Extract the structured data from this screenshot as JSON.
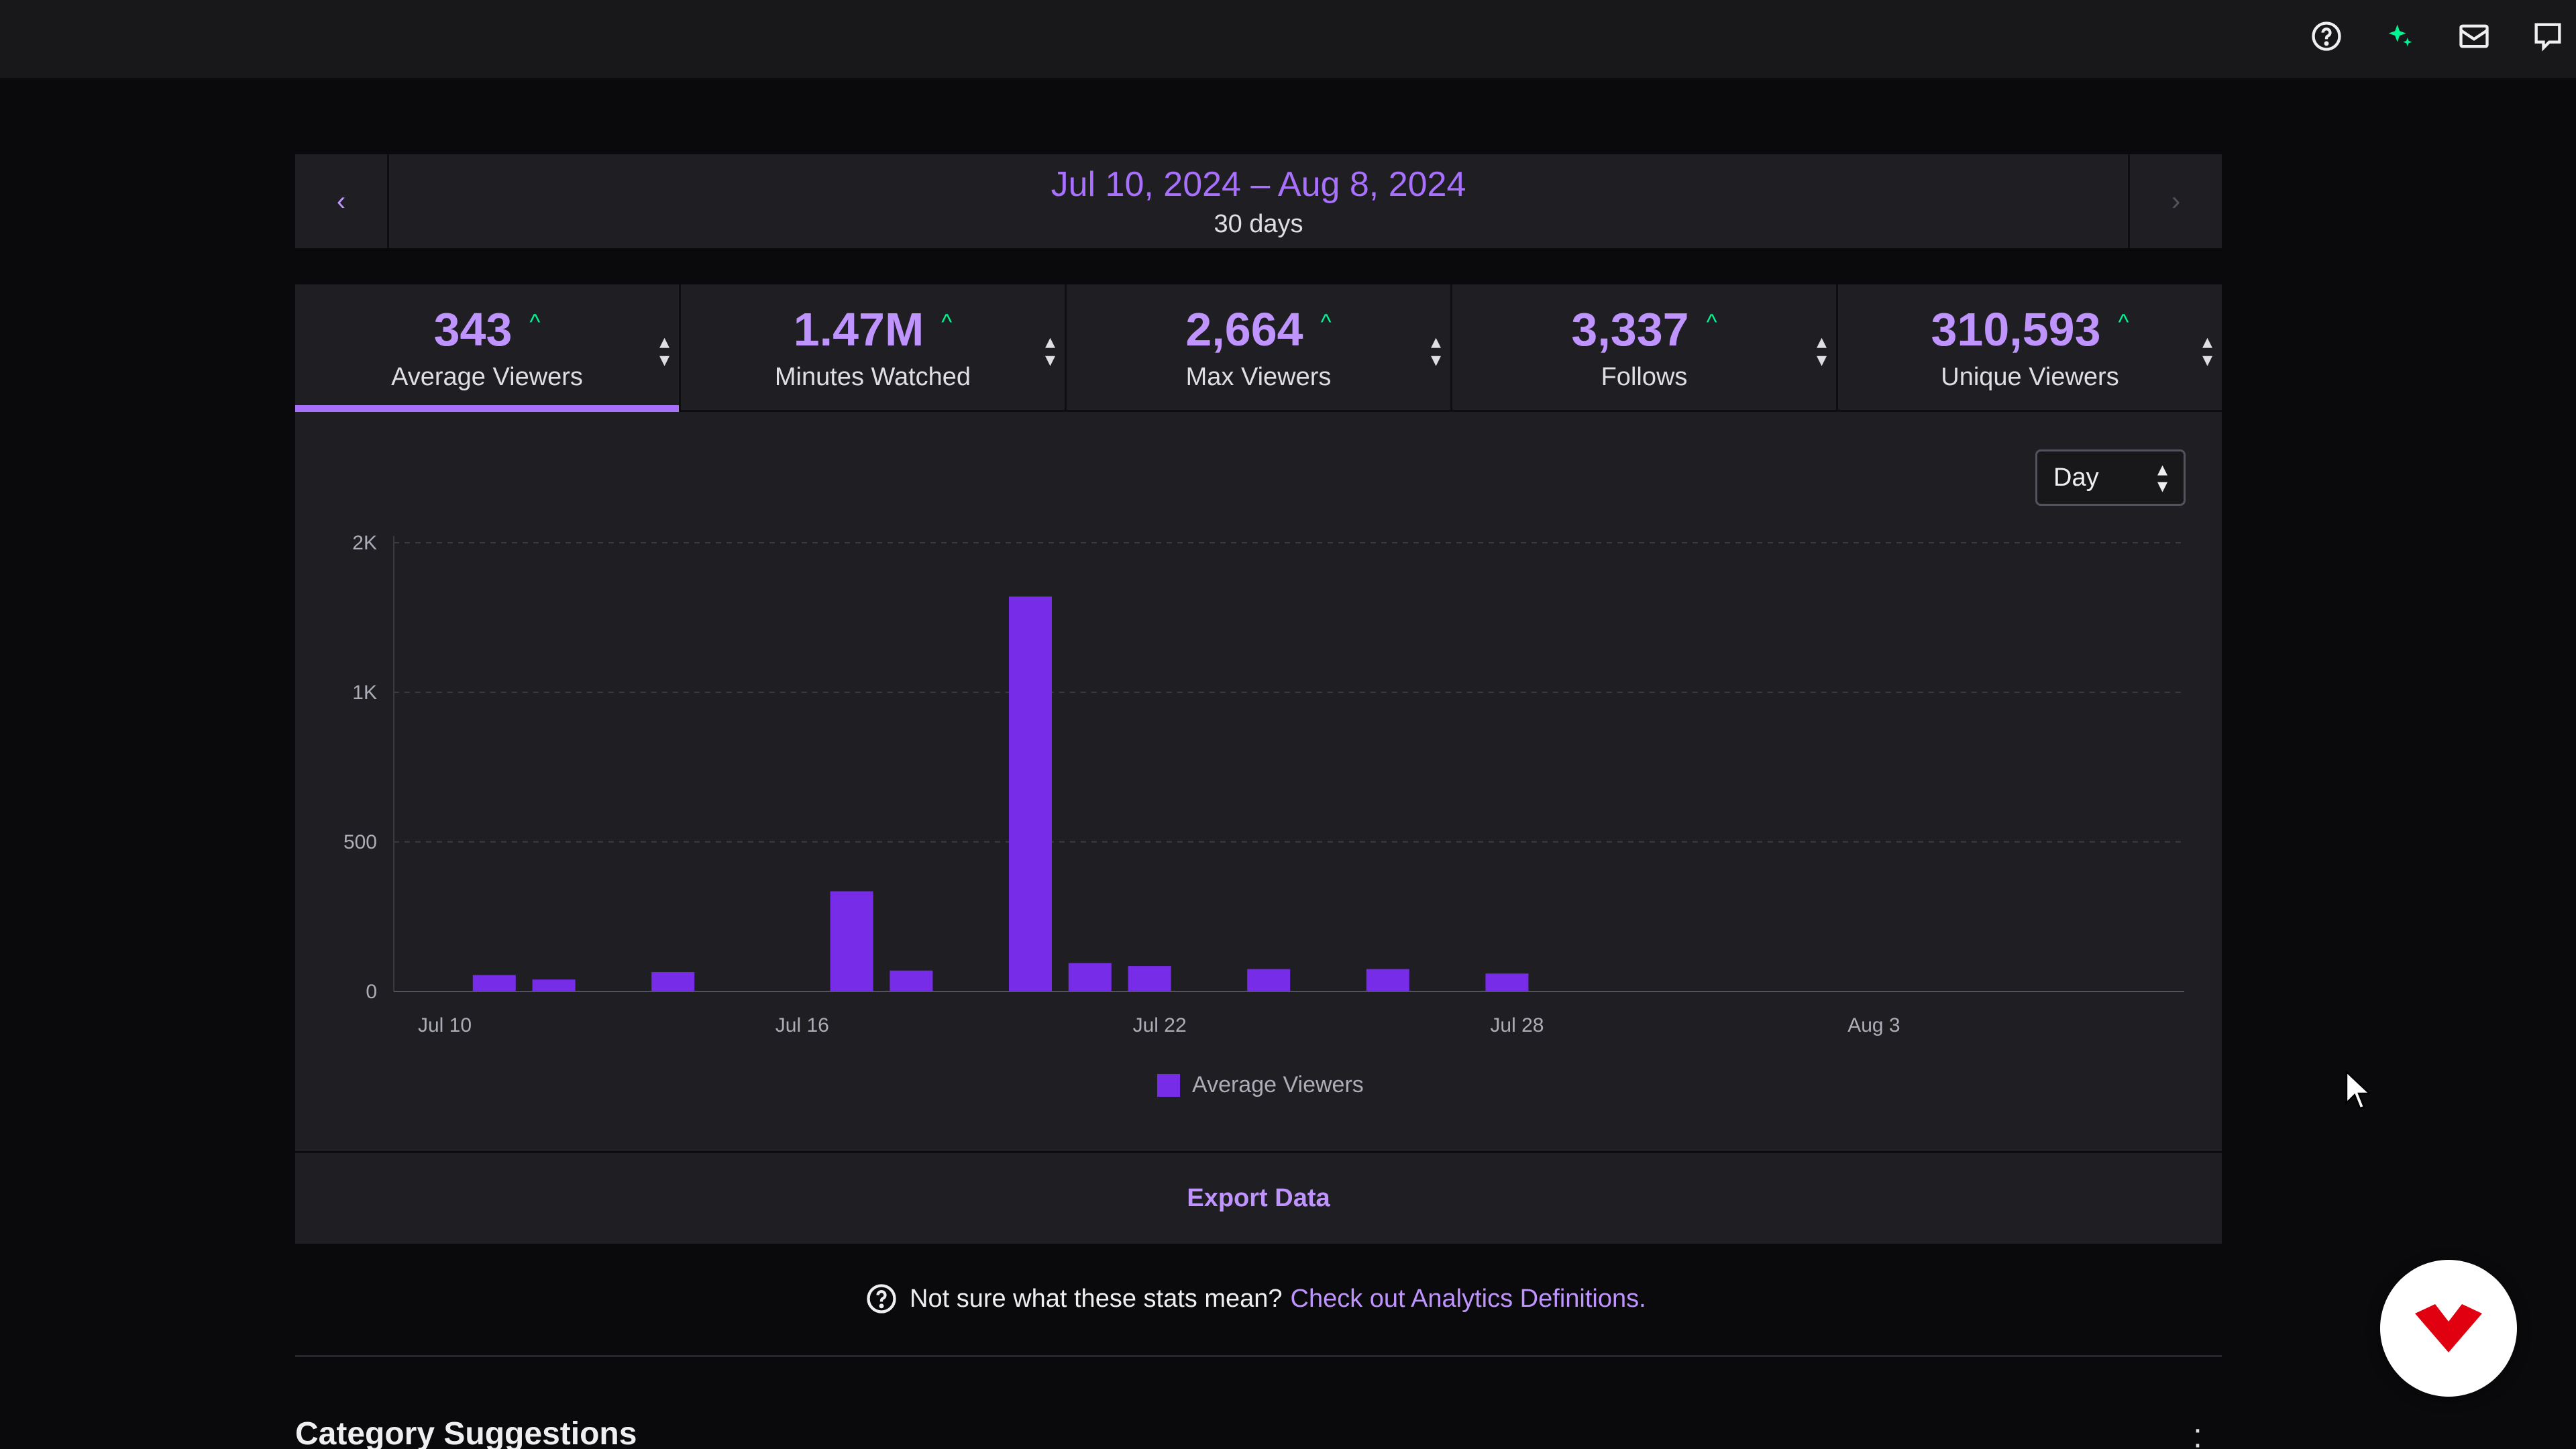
{
  "topbar": {
    "icons": [
      "help-icon",
      "sparkle-icon",
      "inbox-icon",
      "whispers-icon"
    ]
  },
  "date_range": {
    "range": "Jul 10, 2024 – Aug 8, 2024",
    "days": "30 days",
    "prev_glyph": "‹",
    "next_glyph": "›"
  },
  "stats": [
    {
      "value": "343",
      "label": "Average Viewers",
      "trend": "up",
      "active": true
    },
    {
      "value": "1.47M",
      "label": "Minutes Watched",
      "trend": "up",
      "active": false
    },
    {
      "value": "2,664",
      "label": "Max Viewers",
      "trend": "up",
      "active": false
    },
    {
      "value": "3,337",
      "label": "Follows",
      "trend": "up",
      "active": false
    },
    {
      "value": "310,593",
      "label": "Unique Viewers",
      "trend": "up",
      "active": false
    }
  ],
  "granularity": {
    "selected": "Day"
  },
  "chart_data": {
    "type": "bar",
    "x_ticks": [
      "Jul 10",
      "Jul 16",
      "Jul 22",
      "Jul 28",
      "Aug 3"
    ],
    "y_ticks": [
      "0",
      "500",
      "1K",
      "2K"
    ],
    "ylim": [
      0,
      1500
    ],
    "grid": true,
    "legend_position": "bottom-center",
    "series": [
      {
        "name": "Average Viewers",
        "color": "#772ce8",
        "dates": [
          "Jul 10",
          "Jul 11",
          "Jul 12",
          "Jul 13",
          "Jul 14",
          "Jul 15",
          "Jul 16",
          "Jul 17",
          "Jul 18",
          "Jul 19",
          "Jul 20",
          "Jul 21",
          "Jul 22",
          "Jul 23",
          "Jul 24",
          "Jul 25",
          "Jul 26",
          "Jul 27",
          "Jul 28",
          "Jul 29",
          "Jul 30",
          "Jul 31",
          "Aug 1",
          "Aug 2",
          "Aug 3",
          "Aug 4",
          "Aug 5",
          "Aug 6",
          "Aug 7",
          "Aug 8"
        ],
        "values": [
          0,
          55,
          40,
          0,
          65,
          0,
          0,
          335,
          70,
          0,
          1320,
          95,
          85,
          0,
          75,
          0,
          75,
          0,
          60,
          0,
          0,
          0,
          0,
          0,
          0,
          0,
          0,
          0,
          0,
          0
        ]
      }
    ]
  },
  "export_label": "Export Data",
  "help": {
    "text": "Not sure what these stats mean?",
    "link": "Check out Analytics Definitions."
  },
  "section_title": "Category Suggestions",
  "colors": {
    "accent": "#a970ff",
    "bar": "#772ce8",
    "trend_up": "#00f593",
    "panel": "#1f1f23",
    "background": "#0a0a0c"
  }
}
